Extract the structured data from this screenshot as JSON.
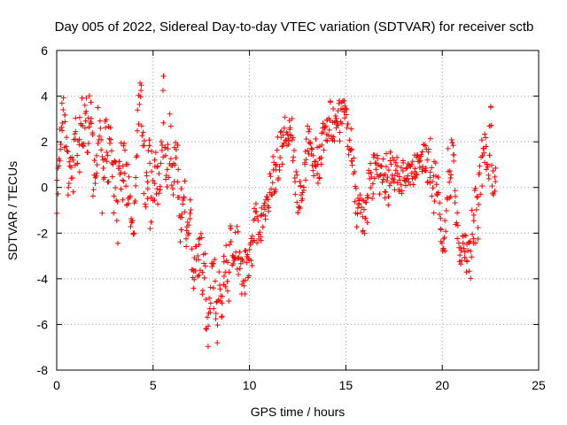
{
  "chart_data": {
    "type": "scatter",
    "title": "Day 005 of 2022, Sidereal Day-to-day VTEC variation (SDTVAR) for receiver sctb",
    "xlabel": "GPS time / hours",
    "ylabel": "SDTVAR / TECUs",
    "xlim": [
      0,
      25
    ],
    "ylim": [
      -8,
      6
    ],
    "xticks": [
      0,
      5,
      10,
      15,
      20,
      25
    ],
    "yticks": [
      -8,
      -6,
      -4,
      -2,
      0,
      2,
      4,
      6
    ],
    "grid": true,
    "marker": "+",
    "series_color": "#ff0000",
    "sample_step_hours": 0.05,
    "trend_hours": [
      0,
      0.25,
      0.5,
      0.8,
      1.2,
      1.5,
      2.0,
      2.5,
      3.0,
      3.5,
      4.0,
      4.3,
      4.6,
      5.0,
      5.5,
      6.0,
      6.5,
      7.0,
      7.5,
      8.0,
      8.3,
      8.8,
      9.2,
      9.6,
      10.0,
      10.5,
      11.0,
      11.5,
      12.0,
      12.5,
      13.0,
      13.5,
      14.0,
      14.5,
      15.0,
      15.3,
      15.6,
      16.0,
      16.5,
      17.0,
      17.5,
      18.0,
      18.5,
      19.0,
      19.5,
      20.0,
      20.5,
      21.0,
      21.5,
      22.0,
      22.5,
      22.8
    ],
    "trend_values": [
      -1.0,
      3.5,
      1.5,
      0.5,
      2.5,
      3.0,
      0.5,
      1.0,
      0.5,
      0.0,
      -1.5,
      3.5,
      1.0,
      0.5,
      2.0,
      0.0,
      -2.0,
      -2.5,
      -3.0,
      -5.0,
      -5.5,
      -3.0,
      -3.5,
      -4.0,
      -3.0,
      -2.0,
      0.0,
      1.0,
      2.5,
      0.5,
      1.5,
      1.0,
      2.0,
      2.5,
      3.5,
      2.0,
      0.0,
      -1.0,
      0.5,
      0.0,
      1.0,
      0.5,
      0.5,
      1.0,
      0.0,
      -1.5,
      1.5,
      -3.0,
      -2.0,
      -1.5,
      2.0,
      1.0
    ],
    "trend_spread": [
      1.5,
      1.5,
      2.0,
      1.5,
      2.0,
      1.5,
      2.0,
      2.0,
      2.0,
      1.5,
      1.0,
      2.0,
      2.5,
      2.0,
      2.5,
      2.0,
      1.5,
      1.5,
      1.5,
      2.0,
      2.0,
      1.5,
      1.5,
      1.5,
      1.5,
      1.0,
      1.0,
      1.0,
      1.0,
      1.0,
      1.0,
      1.0,
      1.0,
      1.0,
      1.0,
      1.0,
      1.5,
      1.0,
      1.0,
      1.0,
      1.0,
      0.8,
      0.8,
      0.8,
      1.5,
      1.5,
      1.5,
      1.0,
      1.5,
      2.0,
      1.5,
      1.5
    ]
  }
}
